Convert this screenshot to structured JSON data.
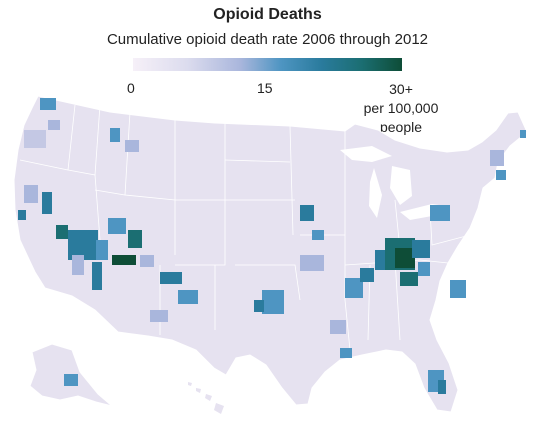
{
  "title": "Opioid Deaths",
  "subtitle": "Cumulative opioid death rate 2006 through 2012",
  "legend": {
    "min_label": "0",
    "mid_label": "15",
    "max_label_line1": "30+",
    "max_label_line2": "per 100,000",
    "max_label_line3": "people",
    "scale_colors": [
      "#f6f0f8",
      "#dcdcee",
      "#a9b6dc",
      "#4e95c2",
      "#2a7b9d",
      "#1b6e72",
      "#0e4d37"
    ]
  },
  "map": {
    "region": "United States counties",
    "base_fill": "#e6e2f0",
    "border_color": "#ffffff"
  }
}
